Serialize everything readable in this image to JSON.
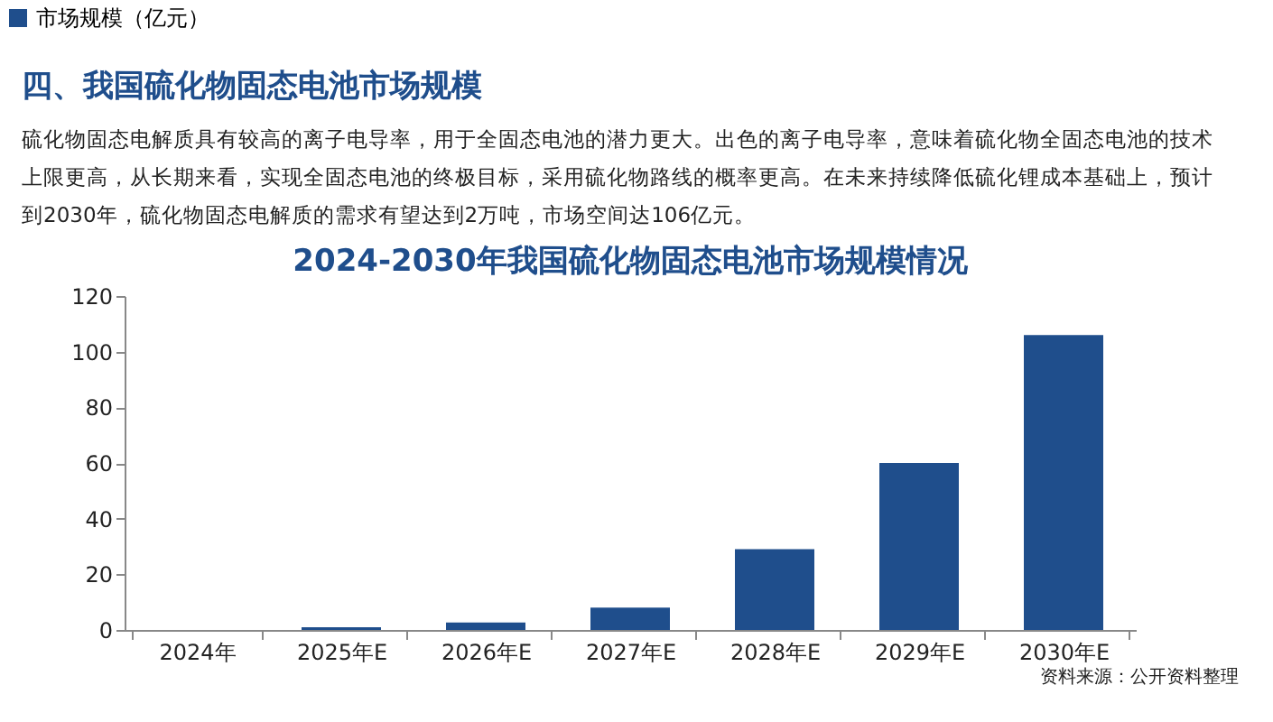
{
  "chart_data": {
    "type": "bar",
    "title": "2024-2030年我国硫化物固态电池市场规模情况",
    "categories": [
      "2024年",
      "2025年E",
      "2026年E",
      "2027年E",
      "2028年E",
      "2029年E",
      "2030年E"
    ],
    "series": [
      {
        "name": "市场规模（亿元）",
        "color": "#1f4e8c",
        "values": [
          0,
          1,
          2.7,
          8,
          29,
          60,
          106
        ]
      }
    ],
    "ylim": [
      0,
      120
    ],
    "yticks": [
      0,
      20,
      40,
      60,
      80,
      100,
      120
    ],
    "grid": false,
    "legend": "top",
    "annotations": [
      "四、我国硫化物固态电池市场规模",
      "硫化物固态电解质具有较高的离子电导率，用于全固态电池的潜力更大。出色的离子电导率，意味着硫化物全固态电池的技术上限更高，从长期来看，实现全固态电池的终极目标，采用硫化物路线的概率更高。在未来持续降低硫化锂成本基础上，预计到2030年，硫化物固态电解质的需求有望达到2万吨，市场空间达106亿元。",
      "资料来源：公开资料整理"
    ]
  }
}
